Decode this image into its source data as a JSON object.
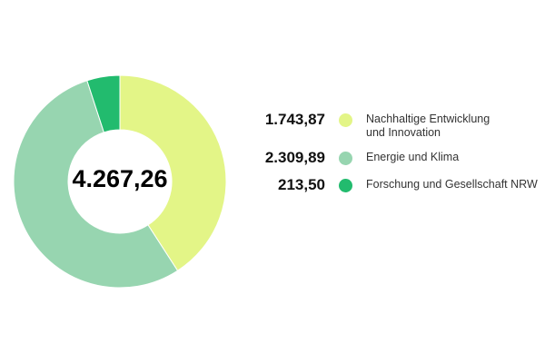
{
  "chart_data": {
    "type": "pie",
    "variant": "donut",
    "total_label": "4.267,26",
    "legend_position": "right",
    "slices": [
      {
        "label": "Nachhaltige Entwicklung und Innovation",
        "value": 1743.87,
        "value_label": "1.743,87",
        "color": "#e3f587"
      },
      {
        "label": "Energie und Klima",
        "value": 2309.89,
        "value_label": "2.309,89",
        "color": "#97d5b0"
      },
      {
        "label": "Forschung und Gesellschaft NRW",
        "value": 213.5,
        "value_label": "213,50",
        "color": "#22bb6e"
      }
    ]
  }
}
